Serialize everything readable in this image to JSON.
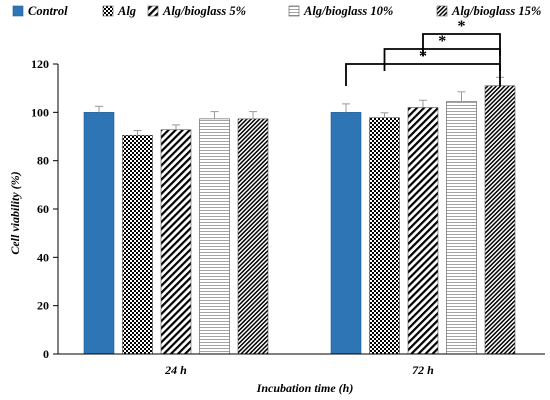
{
  "chart_data": {
    "type": "bar",
    "title": "",
    "xlabel": "Incubation time (h)",
    "ylabel": "Cell viability (%)",
    "ylim": [
      0,
      120
    ],
    "yticks": [
      0,
      20,
      40,
      60,
      80,
      100,
      120
    ],
    "categories": [
      "24 h",
      "72 h"
    ],
    "legend_position": "top",
    "grid": false,
    "series": [
      {
        "name": "Control",
        "values": [
          100,
          100
        ],
        "errors": [
          2.5,
          3.5
        ],
        "color": "#2e75b6",
        "pattern": "solid"
      },
      {
        "name": "Alg",
        "values": [
          90.5,
          97.8
        ],
        "errors": [
          2.0,
          2.0
        ],
        "color": "#000000",
        "pattern": "checker"
      },
      {
        "name": "Alg/bioglass 5%",
        "values": [
          92.8,
          102
        ],
        "errors": [
          2.0,
          3.0
        ],
        "color": "#000000",
        "pattern": "diagonal-wide"
      },
      {
        "name": "Alg/bioglass 10%",
        "values": [
          97.3,
          104.5
        ],
        "errors": [
          3.0,
          4.0
        ],
        "color": "#000000",
        "pattern": "horizontal-light"
      },
      {
        "name": "Alg/bioglass 15%",
        "values": [
          97.3,
          111
        ],
        "errors": [
          3.0,
          3.5
        ],
        "color": "#000000",
        "pattern": "diagonal-dense"
      }
    ],
    "annotations": [
      {
        "text": "*",
        "category": "72 h",
        "from_series": 0,
        "to_series": 4,
        "level": 1
      },
      {
        "text": "*",
        "category": "72 h",
        "from_series": 1,
        "to_series": 4,
        "level": 2
      },
      {
        "text": "*",
        "category": "72 h",
        "from_series": 2,
        "to_series": 4,
        "level": 3
      }
    ]
  }
}
